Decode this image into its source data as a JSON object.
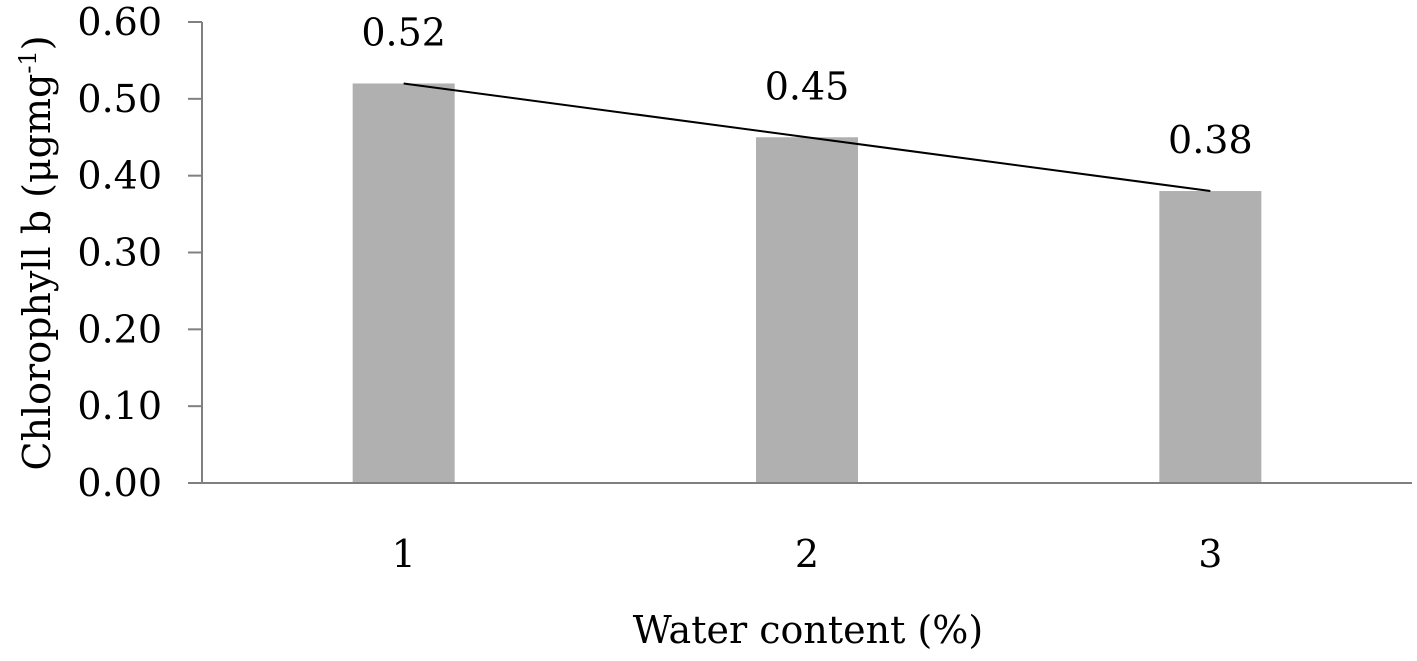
{
  "chart_data": {
    "type": "bar",
    "categories": [
      "1",
      "2",
      "3"
    ],
    "values": [
      0.52,
      0.45,
      0.38
    ],
    "data_labels": [
      "0.52",
      "0.45",
      "0.38"
    ],
    "trendline": {
      "type": "line",
      "values": [
        0.52,
        0.45,
        0.38
      ]
    },
    "xlabel": "Water content (%)",
    "ylabel": {
      "text": "Chlorophyll b  (μgmg",
      "superscript": "-1",
      "suffix": ")"
    },
    "ylim": [
      0,
      0.6
    ],
    "yticks": [
      "0.00",
      "0.10",
      "0.20",
      "0.30",
      "0.40",
      "0.50",
      "0.60"
    ],
    "grid": false,
    "legend": "none",
    "bar_color": "#b0b0b0",
    "line_color": "#000000"
  }
}
